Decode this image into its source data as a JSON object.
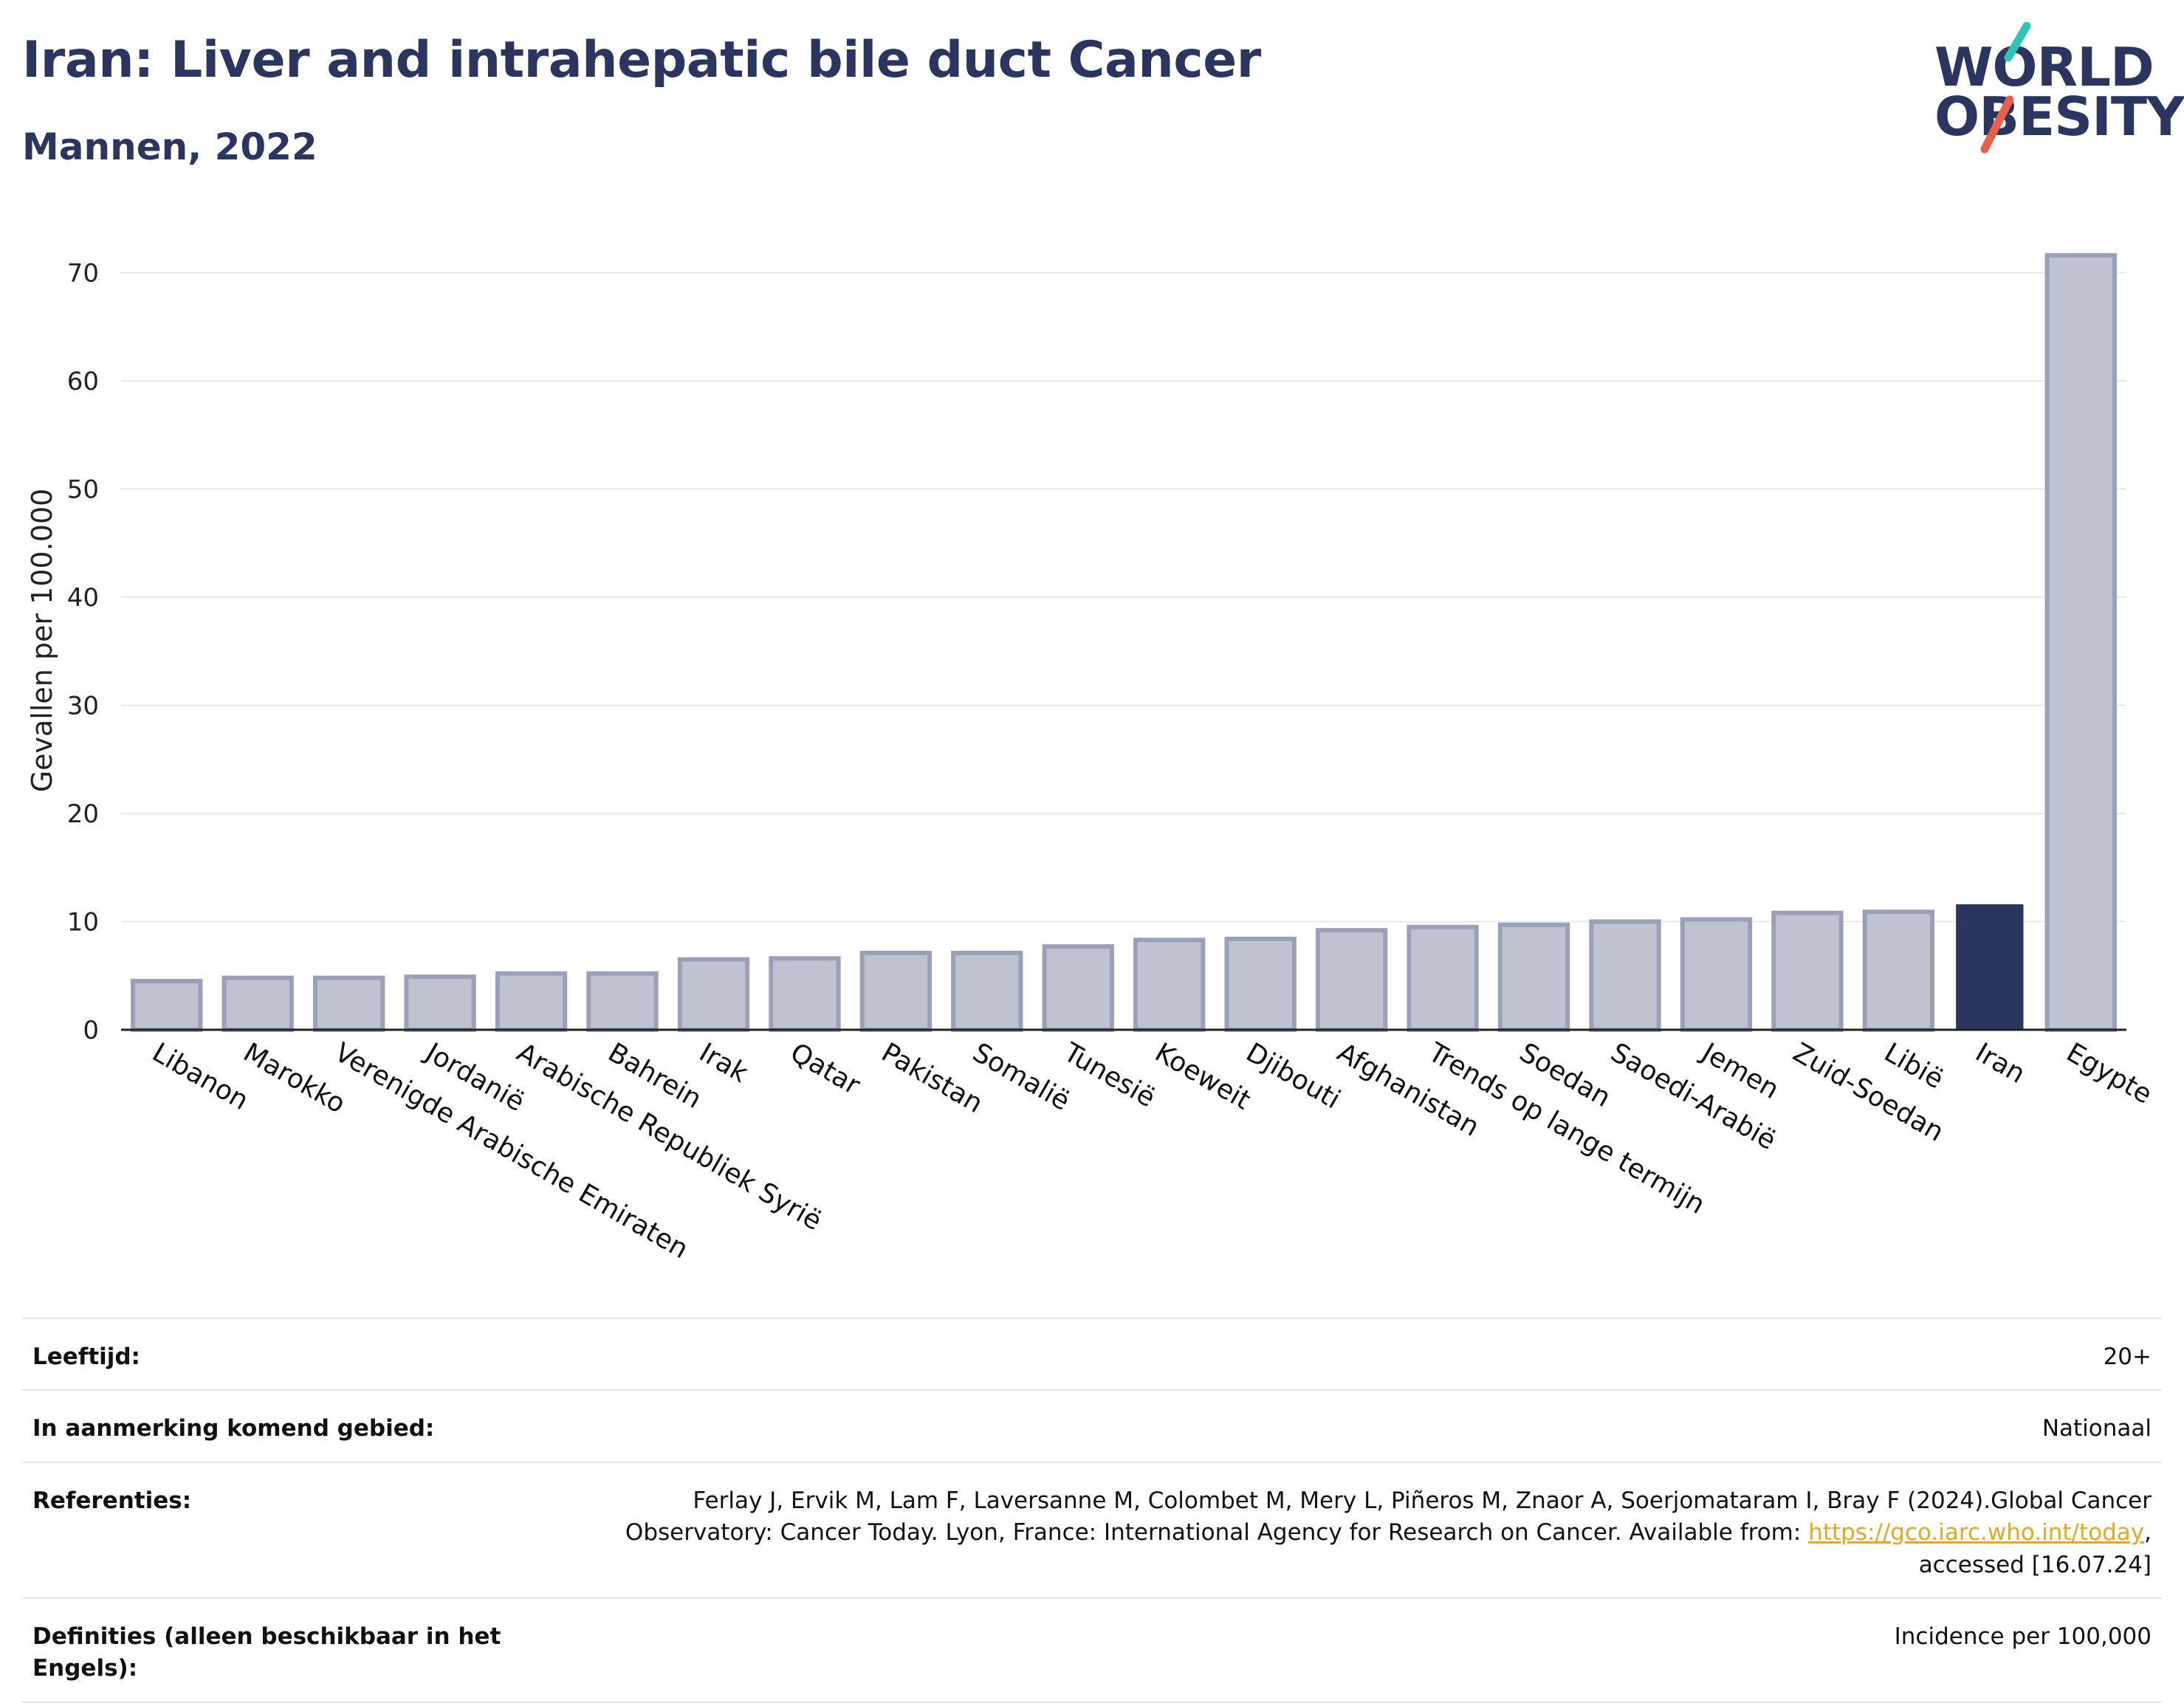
{
  "header": {
    "title": "Iran: Liver and intrahepatic bile duct Cancer",
    "subtitle": "Mannen, 2022"
  },
  "logo": {
    "line1": "WORLD",
    "line2": "OBESITY",
    "slash_color_top": "#2ec4b6",
    "slash_color_bottom": "#e8604c"
  },
  "colors": {
    "primary": "#2a3560",
    "bar_default_fill": "#bfc3d1",
    "bar_default_stroke": "#99a0b8",
    "highlight_fill": "#2a3560",
    "grid": "#e8e8e8",
    "link": "#e6a91e"
  },
  "chart_data": {
    "type": "bar",
    "title": "",
    "xlabel": "",
    "ylabel": "Gevallen per 100.000",
    "ylim": [
      0,
      72
    ],
    "yticks": [
      0,
      10,
      20,
      30,
      40,
      50,
      60,
      70
    ],
    "highlight": "Iran",
    "categories": [
      "Libanon",
      "Marokko",
      "Verenigde Arabische Emiraten",
      "Jordanië",
      "Arabische Republiek Syrië",
      "Bahrein",
      "Irak",
      "Qatar",
      "Pakistan",
      "Somalië",
      "Tunesië",
      "Koeweit",
      "Djibouti",
      "Afghanistan",
      "Trends op lange termijn",
      "Soedan",
      "Saoedi-Arabië",
      "Jemen",
      "Zuid-Soedan",
      "Libië",
      "Iran",
      "Egypte"
    ],
    "values": [
      4.5,
      4.8,
      4.8,
      4.9,
      5.2,
      5.2,
      6.5,
      6.6,
      7.1,
      7.1,
      7.7,
      8.3,
      8.4,
      9.2,
      9.5,
      9.7,
      10.0,
      10.2,
      10.8,
      10.9,
      11.6,
      71.6
    ]
  },
  "meta": {
    "rows": [
      {
        "label": "Leeftijd:",
        "value": "20+"
      },
      {
        "label": "In aanmerking komend gebied:",
        "value": "Nationaal"
      },
      {
        "label": "Referenties:",
        "value_line1": "Ferlay J, Ervik M, Lam F, Laversanne M, Colombet M, Mery L, Piñeros M, Znaor A, Soerjomataram I, Bray F (2024).Global Cancer",
        "value_line2_pre": "Observatory: Cancer Today. Lyon, France: International Agency for Research on Cancer. Available from: ",
        "link_text": "https://gco.iarc.who.int/today",
        "value_line2_post": ",",
        "value_line3": "accessed [16.07.24]"
      },
      {
        "label": "Definities (alleen beschikbaar in het Engels):",
        "value": "Incidence per 100,000"
      }
    ]
  }
}
